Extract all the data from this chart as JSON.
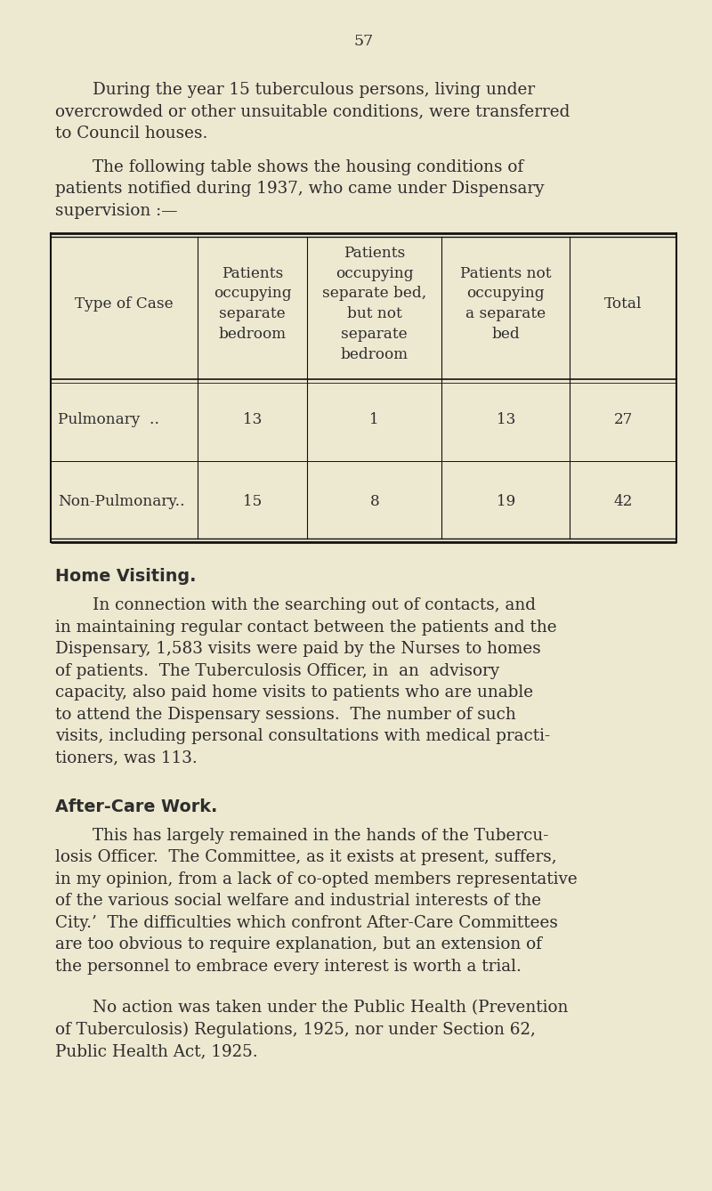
{
  "bg_color": "#ede8d0",
  "text_color": "#2d2d2d",
  "page_number": "57",
  "para1_lines": [
    "During the year 15 tuberculous persons, living under",
    "overcrowded or other unsuitable conditions, were transferred",
    "to Council houses."
  ],
  "para2_lines": [
    "The following table shows the housing conditions of",
    "patients notified during 1937, who came under Dispensary",
    "supervision :—"
  ],
  "table_col_headers": [
    [
      "Type of Case"
    ],
    [
      "Patients",
      "occupying",
      "separate",
      "bedroom"
    ],
    [
      "Patients",
      "occupying",
      "separate bed,",
      "but not",
      "separate",
      "bedroom"
    ],
    [
      "Patients not",
      "occupying",
      "a separate",
      "bed"
    ],
    [
      "Total"
    ]
  ],
  "table_rows": [
    [
      "Pulmonary  ..",
      "13",
      "1",
      "13",
      "27"
    ],
    [
      "Non-Pulmonary..",
      "15",
      "8",
      "19",
      "42"
    ]
  ],
  "section1_title": "Home Visiting.",
  "section1_lines": [
    "In connection with the searching out of contacts, and",
    "in maintaining regular contact between the patients and the",
    "Dispensary, 1,583 visits were paid by the Nurses to homes",
    "of patients.  The Tuberculosis Officer, in  an  advisory",
    "capacity, also paid home visits to patients who are unable",
    "to attend the Dispensary sessions.  The number of such",
    "visits, including personal consultations with medical practi-",
    "tioners, was 113."
  ],
  "section2_title": "After-Care Work.",
  "section2_lines": [
    "This has largely remained in the hands of the Tubercu-",
    "losis Officer.  The Committee, as it exists at present, suffers,",
    "in my opinion, from a lack of co-opted members representative",
    "of the various social welfare and industrial interests of the",
    "City.’  The difficulties which confront After-Care Committees",
    "are too obvious to require explanation, but an extension of",
    "the personnel to embrace every interest is worth a trial."
  ],
  "section3_lines": [
    "No action was taken under the Public Health (Prevention",
    "of Tuberculosis) Regulations, 1925, nor under Section 62,",
    "Public Health Act, 1925."
  ],
  "font_size_body": 13.2,
  "font_size_section_title": 13.8,
  "font_size_page_num": 12.5,
  "font_size_table": 12.2,
  "indent_first": 0.06
}
